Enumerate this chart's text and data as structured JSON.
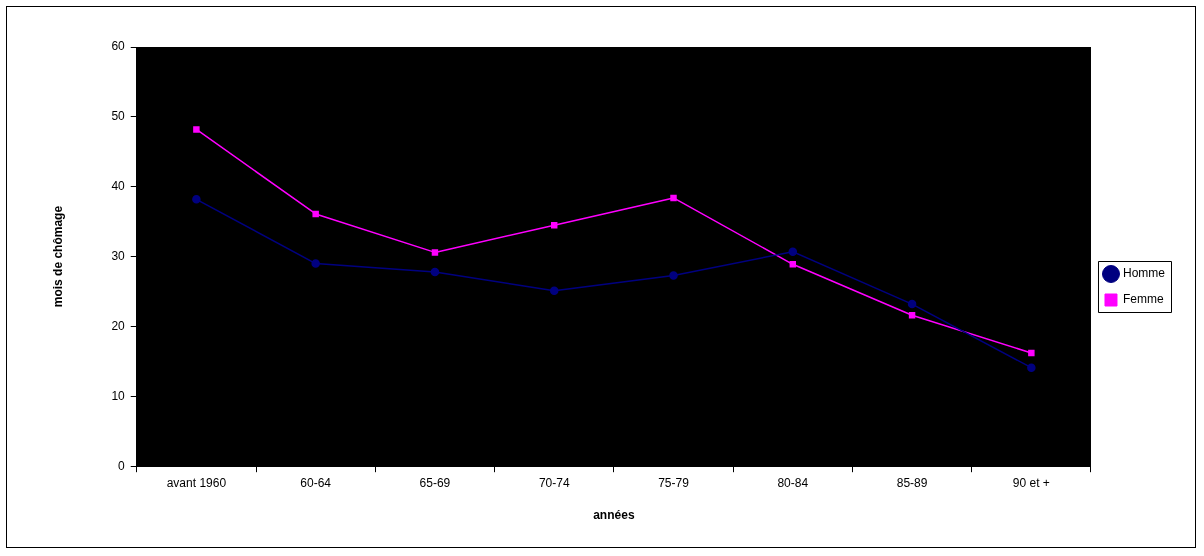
{
  "chart_data": {
    "type": "line",
    "xlabel": "années",
    "ylabel": "mois de chômage",
    "categories": [
      "avant 1960",
      "60-64",
      "65-69",
      "70-74",
      "75-79",
      "80-84",
      "85-89",
      "90 et +"
    ],
    "series": [
      {
        "name": "Homme",
        "color": "#000080",
        "marker": "circle",
        "values": [
          38.2,
          29.0,
          27.8,
          25.1,
          27.3,
          30.7,
          23.2,
          14.1
        ]
      },
      {
        "name": "Femme",
        "color": "#ff00ff",
        "marker": "square",
        "values": [
          48.2,
          36.1,
          30.6,
          34.5,
          38.4,
          28.9,
          21.6,
          16.2
        ]
      }
    ],
    "ylim": [
      0,
      60
    ],
    "yticks": [
      0,
      10,
      20,
      30,
      40,
      50,
      60
    ],
    "legend": "right"
  }
}
